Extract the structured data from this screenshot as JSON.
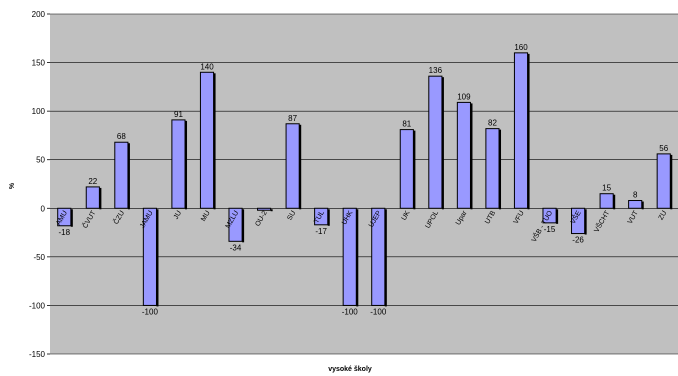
{
  "chart_data": {
    "type": "bar",
    "title": "",
    "xlabel": "vysoké školy",
    "ylabel": "%",
    "ylim": [
      -150,
      200
    ],
    "yticks": [
      -150,
      -100,
      -50,
      0,
      50,
      100,
      150,
      200
    ],
    "grid": true,
    "legend": "none",
    "colors": {
      "plot_bg": "#c0c0c0",
      "bar_fill": "#9999ff",
      "bar_stroke": "#000000",
      "gridline": "#000000"
    },
    "categories": [
      "AMU",
      "ČVUT",
      "ČZU",
      "JAMU",
      "JU",
      "MU",
      "MZLU",
      "OU-2",
      "SU",
      "TUL",
      "UHK",
      "UJEP",
      "UK",
      "UPOL",
      "Upar",
      "UTB",
      "VFU",
      "VŠB - TUO",
      "VŠE",
      "VŠCHT",
      "VUT",
      "ZU"
    ],
    "values": [
      -18,
      22,
      68,
      -100,
      91,
      140,
      -34,
      -2,
      87,
      -17,
      -100,
      -100,
      81,
      136,
      109,
      82,
      160,
      -15,
      -26,
      15,
      8,
      56
    ],
    "data_labels": [
      "-18",
      "22",
      "68",
      "-100",
      "91",
      "140",
      "-34",
      "",
      "87",
      "-17",
      "-100",
      "-100",
      "81",
      "136",
      "109",
      "82",
      "160",
      "-15",
      "-26",
      "15",
      "8",
      "56"
    ]
  }
}
